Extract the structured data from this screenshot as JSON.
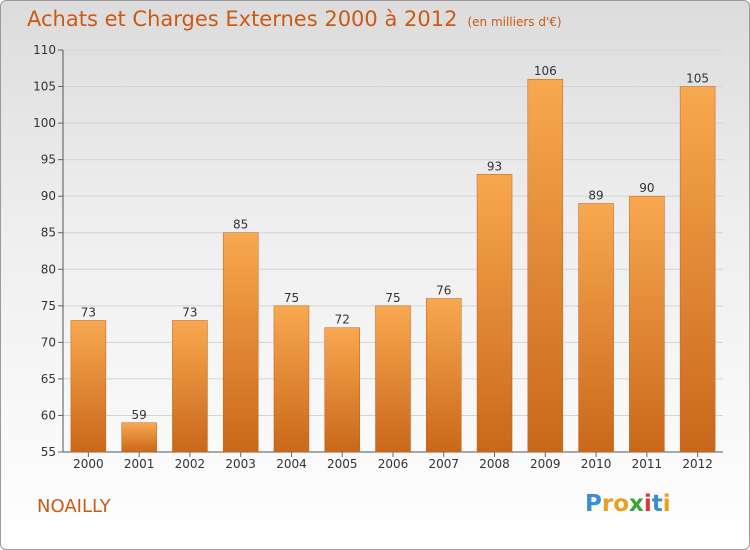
{
  "title": "Achats et Charges Externes 2000 à 2012",
  "subtitle": "(en milliers d'€)",
  "commune": "NOAILLY",
  "logo": {
    "letters": [
      {
        "char": "P",
        "color": "#3a8fd0"
      },
      {
        "char": "r",
        "color": "#e8a020"
      },
      {
        "char": "o",
        "color": "#e8a020"
      },
      {
        "char": "x",
        "color": "#3aa43a"
      },
      {
        "char": "i",
        "color": "#d83838"
      },
      {
        "char": "t",
        "color": "#3a8fd0"
      },
      {
        "char": "i",
        "color": "#e8a020"
      }
    ]
  },
  "colors": {
    "accent": "#cc5a14",
    "bar_light": "#f8a850",
    "bar_dark": "#c9681a"
  },
  "chart_data": {
    "type": "bar",
    "categories": [
      "2000",
      "2001",
      "2002",
      "2003",
      "2004",
      "2005",
      "2006",
      "2007",
      "2008",
      "2009",
      "2010",
      "2011",
      "2012"
    ],
    "values": [
      73,
      59,
      73,
      85,
      75,
      72,
      75,
      76,
      93,
      106,
      89,
      90,
      105
    ],
    "title": "Achats et Charges Externes 2000 à 2012",
    "subtitle": "(en milliers d'€)",
    "xlabel": "",
    "ylabel": "",
    "ylim": [
      55,
      110
    ],
    "yticks": [
      55,
      60,
      65,
      70,
      75,
      80,
      85,
      90,
      95,
      100,
      105,
      110
    ],
    "grid": true,
    "data_labels": true
  }
}
